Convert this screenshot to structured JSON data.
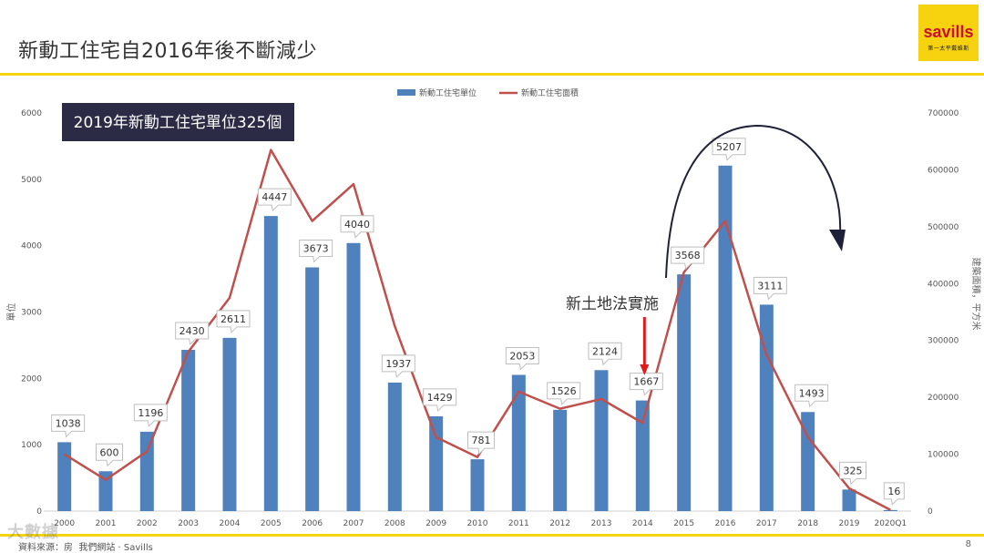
{
  "slide": {
    "title": "新動工住宅自2016年後不斷減少",
    "page_number": "8",
    "source": "資料來源：房 ­ 我們網站 · Savills",
    "watermark": "大數據",
    "logo": {
      "word": "savills",
      "sub": "第一太平戴維斯",
      "color": "#c8102e",
      "background": "#f6d20f"
    }
  },
  "chart_data": {
    "type": "bar",
    "categories": [
      "2000",
      "2001",
      "2002",
      "2003",
      "2004",
      "2005",
      "2006",
      "2007",
      "2008",
      "2009",
      "2010",
      "2011",
      "2012",
      "2013",
      "2014",
      "2015",
      "2016",
      "2017",
      "2018",
      "2019",
      "2020Q1"
    ],
    "series": [
      {
        "name": "新動工住宅單位",
        "kind": "bar",
        "axis": "left",
        "color": "#4f81bd",
        "values": [
          1038,
          600,
          1196,
          2430,
          2611,
          4447,
          3673,
          4040,
          1937,
          1429,
          781,
          2053,
          1526,
          2124,
          1667,
          3568,
          5207,
          3111,
          1493,
          325,
          16
        ]
      },
      {
        "name": "新動工住宅面積",
        "kind": "line",
        "axis": "right",
        "color": "#c0504d",
        "values": [
          100000,
          55000,
          105000,
          280000,
          375000,
          635000,
          510000,
          575000,
          325000,
          130000,
          95000,
          210000,
          180000,
          197000,
          155000,
          420000,
          510000,
          275000,
          130000,
          40000,
          2000
        ]
      }
    ],
    "ylabel": "單位",
    "y2label": "建築面積，平方米",
    "ylim": [
      0,
      6000
    ],
    "yticks": [
      0,
      1000,
      2000,
      3000,
      4000,
      5000,
      6000
    ],
    "y2lim": [
      0,
      700000
    ],
    "y2ticks": [
      0,
      100000,
      200000,
      300000,
      400000,
      500000,
      600000,
      700000
    ],
    "legend": {
      "placement": "top-center"
    },
    "grid": false,
    "annotations": {
      "callout": "2019年新動工住宅單位325個",
      "policy": "新土地法實施",
      "policy_year": "2014"
    },
    "colors": {
      "callout_bg": "#2b2b45",
      "policy_arrow": "#e01b1b",
      "trend_arrow": "#1f2138"
    }
  }
}
